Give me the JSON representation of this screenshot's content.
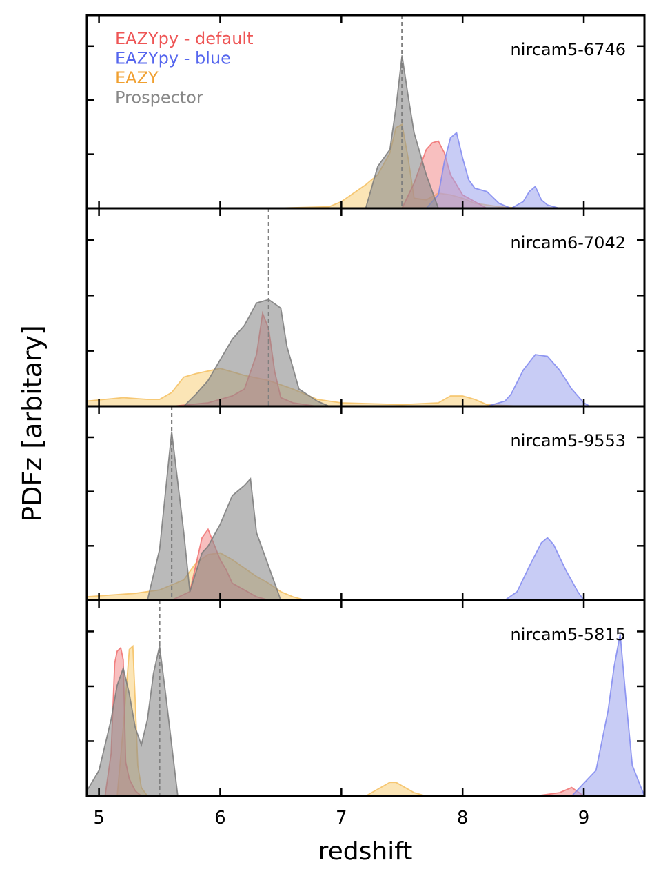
{
  "chart_data": {
    "type": "area",
    "xlabel": "redshift",
    "ylabel": "PDFz [arbitary]",
    "xlim": [
      4.9,
      9.5
    ],
    "xticks": [
      5,
      6,
      7,
      8,
      9
    ],
    "ylim": [
      0,
      1.15
    ],
    "legend": {
      "placement": "top-left of first panel",
      "entries": [
        {
          "label": "EAZYpy - default",
          "color": "#ee5555"
        },
        {
          "label": "EAZYpy - blue",
          "color": "#5566ee"
        },
        {
          "label": "EAZY",
          "color": "#f0a030"
        },
        {
          "label": "Prospector",
          "color": "#888888"
        }
      ]
    },
    "series_styles": {
      "EAZYpy - default": {
        "fill": "#f28a8a",
        "stroke": "#f07070"
      },
      "EAZYpy - blue": {
        "fill": "#9aa3ec",
        "stroke": "#8088f0"
      },
      "EAZY": {
        "fill": "#f7cf7a",
        "stroke": "#f5c060"
      },
      "Prospector": {
        "fill": "#8c8c8c",
        "stroke": "#7a7a7a"
      }
    },
    "panels": [
      {
        "label": "nircam5-6746",
        "vline": 7.5,
        "series": [
          {
            "name": "EAZY",
            "x": [
              6.4,
              6.9,
              7.0,
              7.2,
              7.3,
              7.4,
              7.45,
              7.5,
              7.55,
              7.6,
              7.7,
              7.8,
              7.9,
              8.0,
              8.1,
              8.3,
              8.5
            ],
            "y": [
              0.0,
              0.01,
              0.04,
              0.14,
              0.2,
              0.33,
              0.48,
              0.5,
              0.3,
              0.06,
              0.05,
              0.09,
              0.08,
              0.06,
              0.03,
              0.01,
              0.0
            ]
          },
          {
            "name": "EAZYpy - default",
            "x": [
              7.5,
              7.6,
              7.7,
              7.75,
              7.8,
              7.85,
              7.9,
              8.0,
              8.2
            ],
            "y": [
              0.0,
              0.15,
              0.35,
              0.39,
              0.4,
              0.33,
              0.2,
              0.08,
              0.0
            ]
          },
          {
            "name": "EAZYpy - blue",
            "x": [
              7.7,
              7.8,
              7.85,
              7.9,
              7.95,
              8.0,
              8.05,
              8.1,
              8.2,
              8.3,
              8.4,
              8.5,
              8.55,
              8.6,
              8.65,
              8.7,
              8.8
            ],
            "y": [
              0.0,
              0.08,
              0.28,
              0.42,
              0.45,
              0.3,
              0.17,
              0.12,
              0.1,
              0.03,
              0.0,
              0.04,
              0.1,
              0.13,
              0.05,
              0.02,
              0.0
            ]
          },
          {
            "name": "Prospector",
            "x": [
              7.2,
              7.3,
              7.4,
              7.45,
              7.5,
              7.55,
              7.6,
              7.7,
              7.8
            ],
            "y": [
              0.0,
              0.25,
              0.35,
              0.6,
              0.91,
              0.67,
              0.45,
              0.2,
              0.0
            ]
          }
        ]
      },
      {
        "label": "nircam6-7042",
        "vline": 6.4,
        "series": [
          {
            "name": "EAZY",
            "x": [
              4.9,
              5.2,
              5.4,
              5.5,
              5.6,
              5.7,
              5.8,
              6.0,
              6.2,
              6.4,
              6.6,
              6.8,
              7.0,
              7.5,
              7.8,
              7.9,
              8.0,
              8.1,
              8.2,
              8.5
            ],
            "y": [
              0.03,
              0.05,
              0.04,
              0.04,
              0.08,
              0.17,
              0.19,
              0.22,
              0.18,
              0.15,
              0.1,
              0.04,
              0.02,
              0.01,
              0.02,
              0.06,
              0.06,
              0.04,
              0.01,
              0.0
            ]
          },
          {
            "name": "EAZYpy - default",
            "x": [
              5.6,
              5.9,
              6.0,
              6.1,
              6.2,
              6.3,
              6.35,
              6.4,
              6.45,
              6.5,
              6.6,
              6.8
            ],
            "y": [
              0.0,
              0.02,
              0.04,
              0.06,
              0.1,
              0.3,
              0.54,
              0.45,
              0.2,
              0.05,
              0.02,
              0.0
            ]
          },
          {
            "name": "EAZYpy - blue",
            "x": [
              8.2,
              8.35,
              8.4,
              8.5,
              8.6,
              8.7,
              8.8,
              8.9,
              9.0,
              9.05
            ],
            "y": [
              0.0,
              0.03,
              0.07,
              0.21,
              0.3,
              0.29,
              0.21,
              0.1,
              0.02,
              0.0
            ]
          },
          {
            "name": "Prospector",
            "x": [
              5.7,
              5.8,
              5.9,
              6.0,
              6.1,
              6.2,
              6.3,
              6.4,
              6.5,
              6.55,
              6.65,
              6.8,
              6.9
            ],
            "y": [
              0.0,
              0.07,
              0.15,
              0.27,
              0.39,
              0.47,
              0.6,
              0.62,
              0.57,
              0.35,
              0.1,
              0.03,
              0.0
            ]
          }
        ]
      },
      {
        "label": "nircam5-9553",
        "vline": 5.6,
        "series": [
          {
            "name": "EAZY",
            "x": [
              4.9,
              5.3,
              5.5,
              5.7,
              5.8,
              5.9,
              6.0,
              6.1,
              6.2,
              6.3,
              6.4,
              6.5,
              6.6,
              6.7
            ],
            "y": [
              0.02,
              0.04,
              0.06,
              0.12,
              0.22,
              0.27,
              0.28,
              0.24,
              0.19,
              0.14,
              0.1,
              0.05,
              0.02,
              0.0
            ]
          },
          {
            "name": "EAZYpy - default",
            "x": [
              5.6,
              5.75,
              5.85,
              5.9,
              5.95,
              6.0,
              6.05,
              6.1,
              6.2,
              6.3,
              6.4
            ],
            "y": [
              0.0,
              0.05,
              0.37,
              0.42,
              0.33,
              0.24,
              0.18,
              0.1,
              0.06,
              0.02,
              0.0
            ]
          },
          {
            "name": "EAZYpy - blue",
            "x": [
              8.35,
              8.45,
              8.55,
              8.65,
              8.7,
              8.75,
              8.85,
              8.95,
              9.0
            ],
            "y": [
              0.0,
              0.05,
              0.2,
              0.34,
              0.37,
              0.33,
              0.18,
              0.05,
              0.0
            ]
          },
          {
            "name": "Prospector",
            "x": [
              5.4,
              5.5,
              5.6,
              5.7,
              5.75,
              5.85,
              5.9,
              6.0,
              6.1,
              6.2,
              6.25,
              6.3,
              6.4,
              6.5
            ],
            "y": [
              0.0,
              0.3,
              1.0,
              0.4,
              0.05,
              0.28,
              0.32,
              0.45,
              0.62,
              0.68,
              0.72,
              0.4,
              0.2,
              0.0
            ]
          }
        ]
      },
      {
        "label": "nircam5-5815",
        "vline": 5.5,
        "series": [
          {
            "name": "EAZY",
            "x": [
              5.15,
              5.2,
              5.25,
              5.28,
              5.3,
              5.32,
              5.35,
              5.4,
              7.2,
              7.3,
              7.4,
              7.45,
              7.5,
              7.6,
              7.7
            ],
            "y": [
              0.0,
              0.4,
              0.86,
              0.88,
              0.55,
              0.18,
              0.05,
              0.0,
              0.0,
              0.04,
              0.08,
              0.08,
              0.06,
              0.02,
              0.0
            ]
          },
          {
            "name": "EAZYpy - default",
            "x": [
              5.05,
              5.1,
              5.13,
              5.15,
              5.18,
              5.2,
              5.22,
              5.25,
              5.3,
              5.35,
              8.6,
              8.8,
              8.9,
              9.0
            ],
            "y": [
              0.0,
              0.25,
              0.78,
              0.85,
              0.87,
              0.8,
              0.2,
              0.1,
              0.03,
              0.0,
              0.0,
              0.02,
              0.05,
              0.0
            ]
          },
          {
            "name": "EAZYpy - blue",
            "x": [
              8.9,
              9.1,
              9.2,
              9.25,
              9.3,
              9.35,
              9.4,
              9.5
            ],
            "y": [
              0.0,
              0.15,
              0.5,
              0.76,
              0.95,
              0.55,
              0.18,
              0.0
            ]
          },
          {
            "name": "Prospector",
            "x": [
              4.9,
              5.0,
              5.1,
              5.15,
              5.2,
              5.25,
              5.3,
              5.35,
              5.4,
              5.45,
              5.5,
              5.55,
              5.6,
              5.65
            ],
            "y": [
              0.03,
              0.15,
              0.45,
              0.65,
              0.75,
              0.6,
              0.4,
              0.3,
              0.45,
              0.72,
              0.88,
              0.6,
              0.3,
              0.0
            ]
          }
        ]
      }
    ]
  }
}
